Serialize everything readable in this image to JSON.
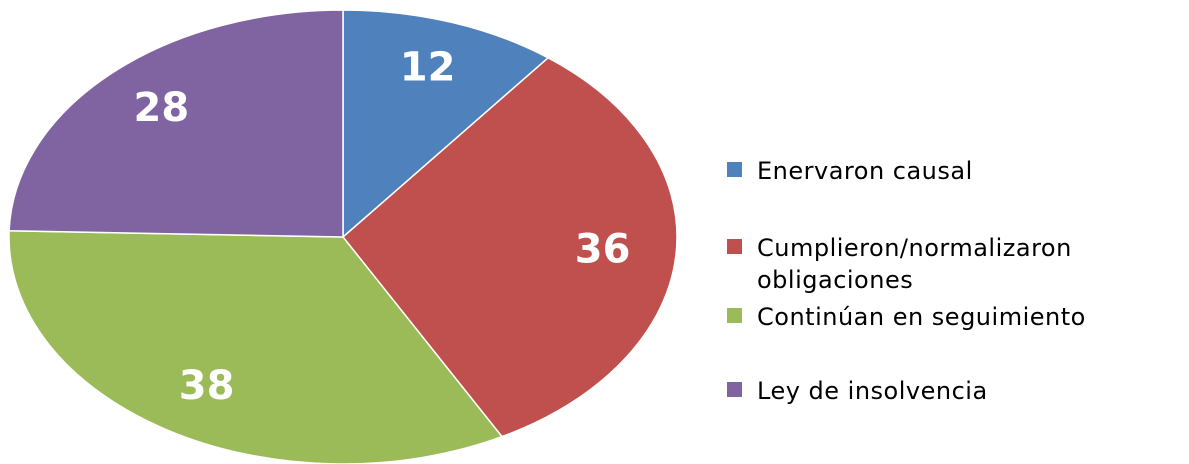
{
  "chart_data": {
    "type": "pie",
    "categories": [
      "Enervaron causal",
      "Cumplieron/normalizaron obligaciones",
      "Continúan en seguimiento",
      "Ley de insolvencia"
    ],
    "values": [
      12,
      36,
      38,
      28
    ],
    "colors": [
      "#4f81bd",
      "#c0504d",
      "#9bbb59",
      "#8064a2"
    ],
    "legend": "right"
  }
}
